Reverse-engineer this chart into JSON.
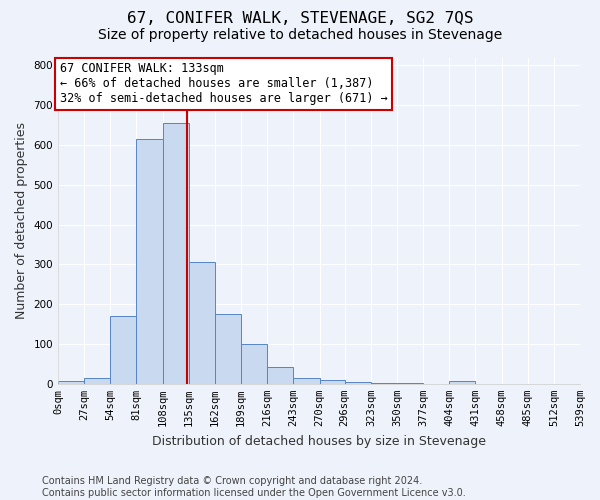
{
  "title": "67, CONIFER WALK, STEVENAGE, SG2 7QS",
  "subtitle": "Size of property relative to detached houses in Stevenage",
  "xlabel": "Distribution of detached houses by size in Stevenage",
  "ylabel": "Number of detached properties",
  "bin_edges": [
    0,
    27,
    54,
    81,
    108,
    135,
    162,
    189,
    216,
    243,
    270,
    296,
    323,
    350,
    377,
    404,
    431,
    458,
    485,
    512,
    539
  ],
  "bar_heights": [
    8,
    15,
    170,
    615,
    655,
    305,
    175,
    100,
    42,
    15,
    10,
    5,
    3,
    2,
    0,
    8,
    0,
    0,
    0,
    0
  ],
  "bar_color": "#c8d9f0",
  "bar_edge_color": "#5585c5",
  "property_size": 133,
  "vline_color": "#cc0000",
  "annotation_line1": "67 CONIFER WALK: 133sqm",
  "annotation_line2": "← 66% of detached houses are smaller (1,387)",
  "annotation_line3": "32% of semi-detached houses are larger (671) →",
  "annotation_box_color": "#ffffff",
  "annotation_box_edge": "#cc0000",
  "ylim": [
    0,
    820
  ],
  "yticks": [
    0,
    100,
    200,
    300,
    400,
    500,
    600,
    700,
    800
  ],
  "background_color": "#eef2fa",
  "grid_color": "#ffffff",
  "footer_text": "Contains HM Land Registry data © Crown copyright and database right 2024.\nContains public sector information licensed under the Open Government Licence v3.0.",
  "title_fontsize": 11.5,
  "subtitle_fontsize": 10,
  "xlabel_fontsize": 9,
  "ylabel_fontsize": 9,
  "tick_fontsize": 7.5,
  "annotation_fontsize": 8.5,
  "footer_fontsize": 7
}
